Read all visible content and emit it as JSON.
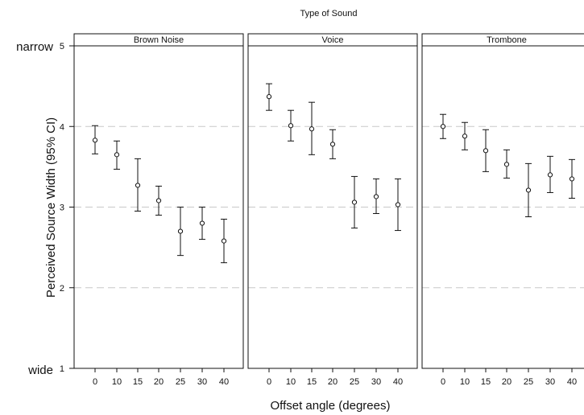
{
  "chart_data": {
    "type": "scatter",
    "facet_title": "Type of Sound",
    "xlabel": "Offset angle (degrees)",
    "ylabel": "Perceived Source Width (95% CI)",
    "x_categories": [
      "0",
      "10",
      "15",
      "20",
      "25",
      "30",
      "40"
    ],
    "ylim": [
      1,
      5
    ],
    "y_ticks": [
      1,
      2,
      3,
      4,
      5
    ],
    "y_end_labels": {
      "top": "narrow",
      "bottom": "wide"
    },
    "grid_y": [
      2,
      3,
      4
    ],
    "error_bars": "95% CI",
    "panels": [
      {
        "title": "Brown Noise",
        "means": [
          3.83,
          3.65,
          3.27,
          3.08,
          2.7,
          2.8,
          2.58
        ],
        "ci_low": [
          3.66,
          3.47,
          2.95,
          2.9,
          2.4,
          2.6,
          2.31
        ],
        "ci_high": [
          4.01,
          3.82,
          3.6,
          3.26,
          3.0,
          3.0,
          2.85
        ]
      },
      {
        "title": "Voice",
        "means": [
          4.37,
          4.01,
          3.97,
          3.78,
          3.06,
          3.13,
          3.03
        ],
        "ci_low": [
          4.2,
          3.82,
          3.65,
          3.6,
          2.74,
          2.92,
          2.71
        ],
        "ci_high": [
          4.53,
          4.2,
          4.3,
          3.96,
          3.38,
          3.35,
          3.35
        ]
      },
      {
        "title": "Trombone",
        "means": [
          4.0,
          3.88,
          3.7,
          3.53,
          3.21,
          3.4,
          3.35
        ],
        "ci_low": [
          3.85,
          3.71,
          3.44,
          3.36,
          2.88,
          3.18,
          3.11
        ],
        "ci_high": [
          4.15,
          4.05,
          3.96,
          3.71,
          3.54,
          3.63,
          3.59
        ]
      }
    ]
  }
}
